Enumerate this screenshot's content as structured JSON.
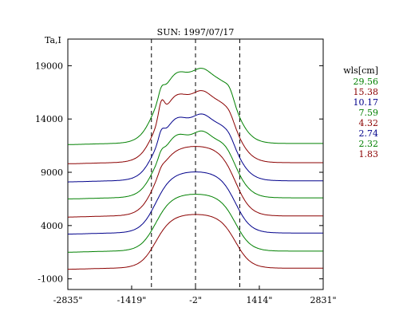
{
  "chart_data": {
    "type": "line",
    "title": "SUN: 1997/07/17",
    "ylabel": "Ta,I",
    "xlabel": "",
    "xlim": [
      -2835,
      2831
    ],
    "ylim": [
      -2000,
      21500
    ],
    "x_ticks": [
      -2835,
      -1419,
      -2,
      1414,
      2831
    ],
    "x_tick_labels": [
      "-2835\"",
      "-1419\"",
      "-2\"",
      "1414\"",
      "2831\""
    ],
    "y_ticks": [
      -1000,
      4000,
      9000,
      14000,
      19000
    ],
    "y_tick_labels": [
      "-1000",
      "4000",
      "9000",
      "14000",
      "19000"
    ],
    "reference_lines_x": [
      -980,
      -2,
      980
    ],
    "legend": {
      "title": "wls[cm]",
      "placement": "right"
    },
    "series": [
      {
        "name": "29.56",
        "color": "#008000",
        "base": 11700,
        "plateau": 18600,
        "bump": 1,
        "peak_left": 800,
        "peak_right": 500,
        "ripple": 1
      },
      {
        "name": "15.38",
        "color": "#8b0000",
        "base": 9900,
        "plateau": 16500,
        "bump": 1,
        "peak_left": 1500,
        "peak_right": 250,
        "ripple": 1
      },
      {
        "name": "10.17",
        "color": "#00008b",
        "base": 8200,
        "plateau": 14300,
        "bump": 1,
        "peak_left": 800,
        "peak_right": 150,
        "ripple": 1
      },
      {
        "name": "7.59",
        "color": "#008000",
        "base": 6600,
        "plateau": 12700,
        "bump": 1,
        "peak_left": 500,
        "peak_right": 0,
        "ripple": 1
      },
      {
        "name": "4.32",
        "color": "#8b0000",
        "base": 4900,
        "plateau": 11400,
        "bump": 1,
        "peak_left": 300,
        "peak_right": 0,
        "ripple": 0
      },
      {
        "name": "2.74",
        "color": "#00008b",
        "base": 3300,
        "plateau": 9000,
        "bump": 1,
        "peak_left": 0,
        "peak_right": 0,
        "ripple": 0
      },
      {
        "name": "2.32",
        "color": "#008000",
        "base": 1600,
        "plateau": 6900,
        "bump": 1,
        "peak_left": 0,
        "peak_right": 0,
        "ripple": 0
      },
      {
        "name": "1.83",
        "color": "#8b0000",
        "base": 0,
        "plateau": 5000,
        "bump": 1,
        "peak_left": 0,
        "peak_right": 0,
        "ripple": 0
      }
    ]
  }
}
